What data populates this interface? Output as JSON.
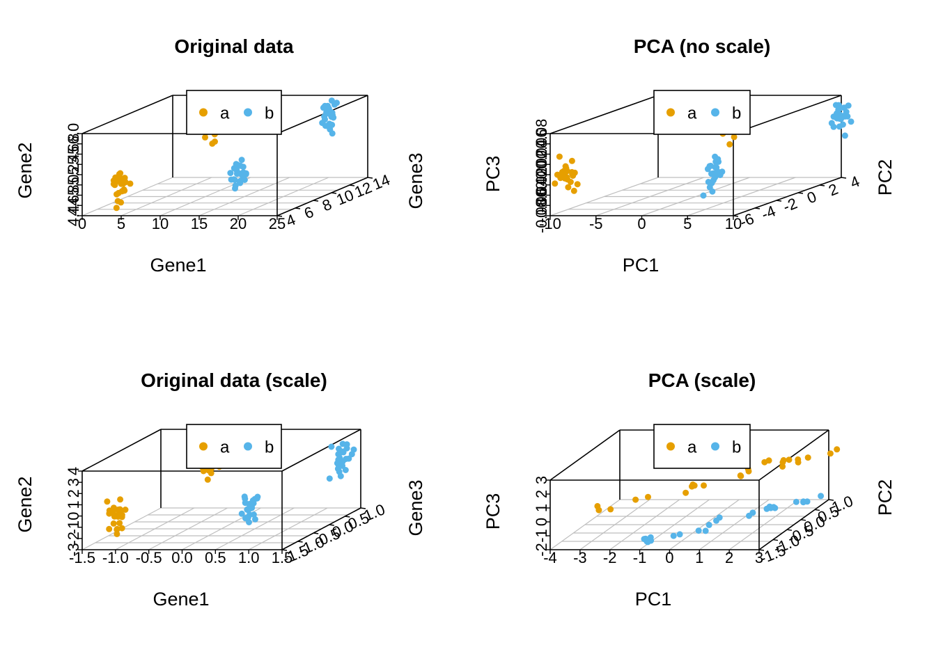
{
  "colors": {
    "a": "#E69F00",
    "b": "#56B4E9",
    "grid": "#BEBEBE",
    "axis": "#000000"
  },
  "chart_data": [
    {
      "type": "scatter",
      "title": "Original data",
      "xlabel": "Gene1",
      "ylabel": "Gene2",
      "zlabel": "Gene3",
      "x_ticks": [
        "0",
        "5",
        "10",
        "15",
        "20",
        "25"
      ],
      "z_ticks": [
        "4",
        "6",
        "8",
        "10",
        "12",
        "14"
      ],
      "y_ticks": [
        "4.4",
        "4.6",
        "4.8",
        "5.0",
        "5.2",
        "5.4",
        "5.6",
        "5.8",
        "6.0"
      ],
      "legend": {
        "entries": [
          "a",
          "b"
        ],
        "position": "top-center"
      },
      "series": [
        {
          "name": "a",
          "clusters": [
            {
              "x": 5,
              "y": 5.0,
              "z": 4
            },
            {
              "x": 5,
              "y": 5.4,
              "z": 14
            }
          ]
        },
        {
          "name": "b",
          "clusters": [
            {
              "x": 20,
              "y": 5.2,
              "z": 4
            },
            {
              "x": 20,
              "y": 5.6,
              "z": 14
            }
          ]
        }
      ]
    },
    {
      "type": "scatter",
      "title": "PCA (no scale)",
      "xlabel": "PC1",
      "ylabel": "PC3",
      "zlabel": "PC2",
      "x_ticks": [
        "-10",
        "-5",
        "0",
        "5",
        "10"
      ],
      "z_ticks": [
        "-6",
        "-4",
        "-2",
        "0",
        "2",
        "4"
      ],
      "y_ticks": [
        "-0.08",
        "-0.06",
        "-0.04",
        "-0.02",
        "0.00",
        "0.02",
        "0.04",
        "0.06",
        "0.08"
      ],
      "legend": {
        "entries": [
          "a",
          "b"
        ],
        "position": "top-center"
      },
      "series": [
        {
          "name": "a",
          "clusters": [
            {
              "x": -8,
              "y": 0.0,
              "z": -6
            },
            {
              "x": -2,
              "y": 0.02,
              "z": 4
            }
          ]
        },
        {
          "name": "b",
          "clusters": [
            {
              "x": 8,
              "y": 0.0,
              "z": -6
            },
            {
              "x": 10,
              "y": 0.04,
              "z": 4
            }
          ]
        }
      ]
    },
    {
      "type": "scatter",
      "title": "Original data (scale)",
      "xlabel": "Gene1",
      "ylabel": "Gene2",
      "zlabel": "Gene3",
      "x_ticks": [
        "-1.5",
        "-1.0",
        "-0.5",
        "0.0",
        "0.5",
        "1.0",
        "1.5"
      ],
      "z_ticks": [
        "-1.5",
        "-1.0",
        "-0.5",
        "0.0",
        "0.5",
        "1.0"
      ],
      "y_ticks": [
        "-3",
        "-2",
        "-1",
        "0",
        "1",
        "2",
        "3",
        "4"
      ],
      "legend": {
        "entries": [
          "a",
          "b"
        ],
        "position": "top-center"
      },
      "series": [
        {
          "name": "a",
          "clusters": [
            {
              "x": -1.0,
              "y": 0.0,
              "z": -1.5
            },
            {
              "x": -0.8,
              "y": 1.0,
              "z": 1.0
            }
          ]
        },
        {
          "name": "b",
          "clusters": [
            {
              "x": 1.0,
              "y": 0.5,
              "z": -1.5
            },
            {
              "x": 1.2,
              "y": 1.5,
              "z": 1.0
            }
          ]
        }
      ]
    },
    {
      "type": "scatter",
      "title": "PCA (scale)",
      "xlabel": "PC1",
      "ylabel": "PC3",
      "zlabel": "PC2",
      "x_ticks": [
        "-4",
        "-3",
        "-2",
        "-1",
        "0",
        "1",
        "2",
        "3"
      ],
      "z_ticks": [
        "-1.5",
        "-1.0",
        "-0.5",
        "0.0",
        "0.5",
        "1.0"
      ],
      "y_ticks": [
        "-2",
        "-1",
        "0",
        "1",
        "2",
        "3"
      ],
      "legend": {
        "entries": [
          "a",
          "b"
        ],
        "position": "top-center"
      },
      "series": [
        {
          "name": "a",
          "clusters": [
            {
              "x": -3,
              "y": 0.5,
              "z": -1.5
            },
            {
              "x": 3,
              "y": 1.5,
              "z": 1.0
            }
          ]
        },
        {
          "name": "b",
          "clusters": [
            {
              "x": -1,
              "y": -1.5,
              "z": -1.5
            },
            {
              "x": 3,
              "y": -1.5,
              "z": 1.0
            }
          ]
        }
      ]
    }
  ]
}
